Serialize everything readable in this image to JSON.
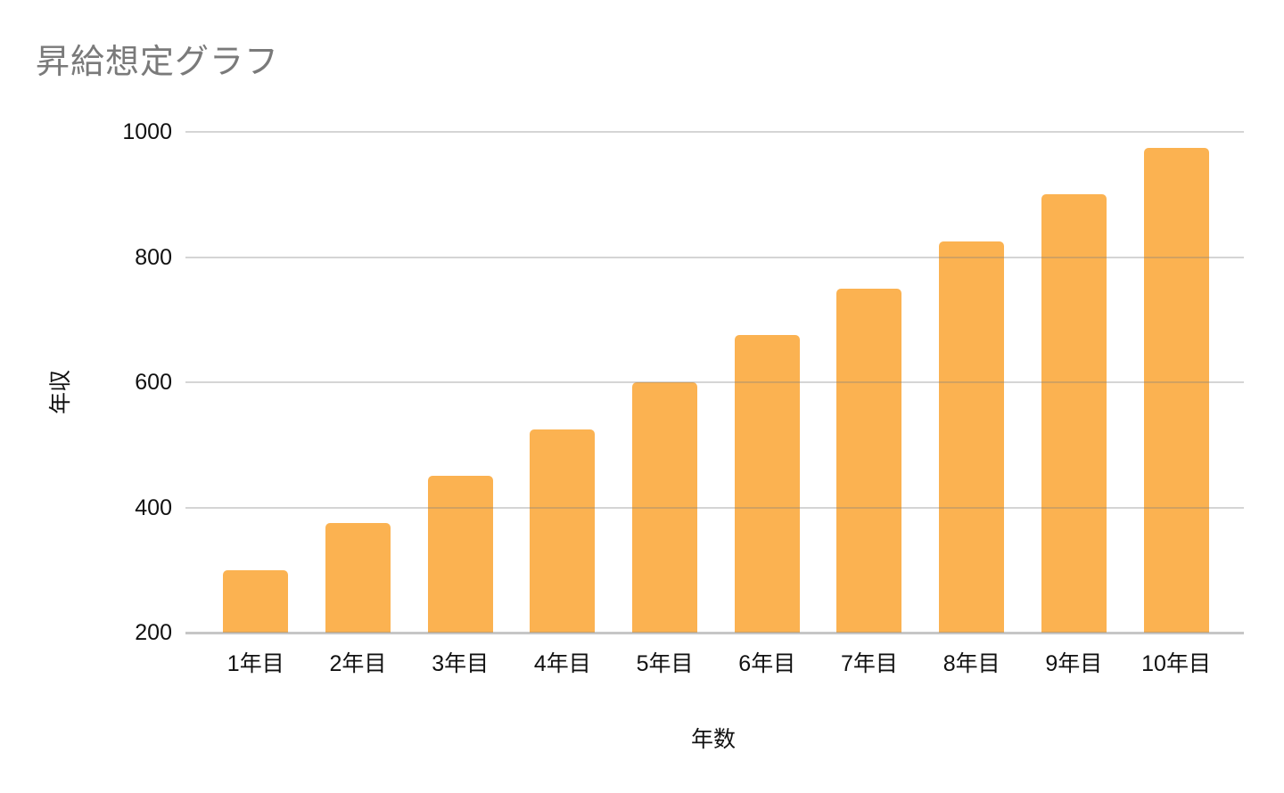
{
  "chart_data": {
    "type": "bar",
    "title": "昇給想定グラフ",
    "xlabel": "年数",
    "ylabel": "年収",
    "categories": [
      "1年目",
      "2年目",
      "3年目",
      "4年目",
      "5年目",
      "6年目",
      "7年目",
      "8年目",
      "9年目",
      "10年目"
    ],
    "values": [
      300,
      375,
      450,
      525,
      600,
      675,
      750,
      825,
      900,
      975
    ],
    "y_ticks": [
      200,
      400,
      600,
      800,
      1000
    ],
    "ylim": [
      200,
      1000
    ],
    "grid": true,
    "legend_position": "none",
    "colors": {
      "bar": "#FBB251",
      "gridline": "#D9D9D9",
      "title_text": "#7A7A7A",
      "axis_text": "#111111",
      "background": "#FFFFFF"
    }
  }
}
